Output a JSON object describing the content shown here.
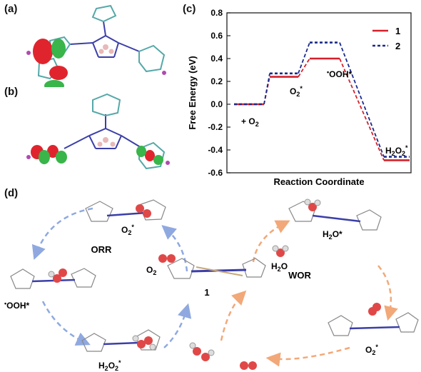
{
  "panels": {
    "a": {
      "label": "(a)"
    },
    "b": {
      "label": "(b)"
    },
    "c": {
      "label": "(c)"
    },
    "d": {
      "label": "(d)"
    }
  },
  "colors": {
    "series_1": "#d4202a",
    "series_2": "#1a2a8c",
    "orr_arrow": "#8fa9e0",
    "wor_arrow": "#f2a878",
    "orbital_red": "#e0242e",
    "orbital_green": "#39b54a"
  },
  "chart_data": {
    "type": "line",
    "xlabel": "Reaction Coordinate",
    "ylabel": "Free Energy (eV)",
    "ylim": [
      -0.6,
      0.8
    ],
    "yticks": [
      "0.8",
      "0.6",
      "0.4",
      "0.2",
      "0.0",
      "-0.2",
      "-0.4",
      "-0.6"
    ],
    "states": [
      "+ O2",
      "O2*",
      "•OOH*",
      "H2O2*"
    ],
    "state_labels": {
      "s0": {
        "base": "+ O",
        "sub": "2",
        "sup": ""
      },
      "s1": {
        "base": "O",
        "sub": "2",
        "sup": "*"
      },
      "s2": {
        "pre": "•",
        "base": "OOH*"
      },
      "s3": {
        "base": "H",
        "sub1": "2",
        "mid": "O",
        "sub2": "2",
        "sup": "*"
      }
    },
    "legend_position": "top-right",
    "series": [
      {
        "name": "1",
        "values": [
          0.0,
          0.24,
          0.4,
          -0.49
        ]
      },
      {
        "name": "2",
        "values": [
          0.0,
          0.27,
          0.54,
          -0.46
        ]
      }
    ]
  },
  "scheme": {
    "orr_label": "ORR",
    "wor_label": "WOR",
    "center_label": "1",
    "o2_label": {
      "base": "O",
      "sub": "2"
    },
    "h2o_label": {
      "base": "H",
      "sub": "2",
      "tail": "O"
    },
    "o2_star_top": {
      "base": "O",
      "sub": "2",
      "sup": "*"
    },
    "ooh_star": {
      "pre": "•",
      "base": "OOH*"
    },
    "h2o2_star": {
      "base": "H",
      "sub1": "2",
      "mid": "O",
      "sub2": "2",
      "sup": "*"
    },
    "h2o_star": {
      "base": "H",
      "sub": "2",
      "tail": "O*"
    },
    "o2_star_right": {
      "base": "O",
      "sub": "2",
      "sup": "*"
    }
  }
}
